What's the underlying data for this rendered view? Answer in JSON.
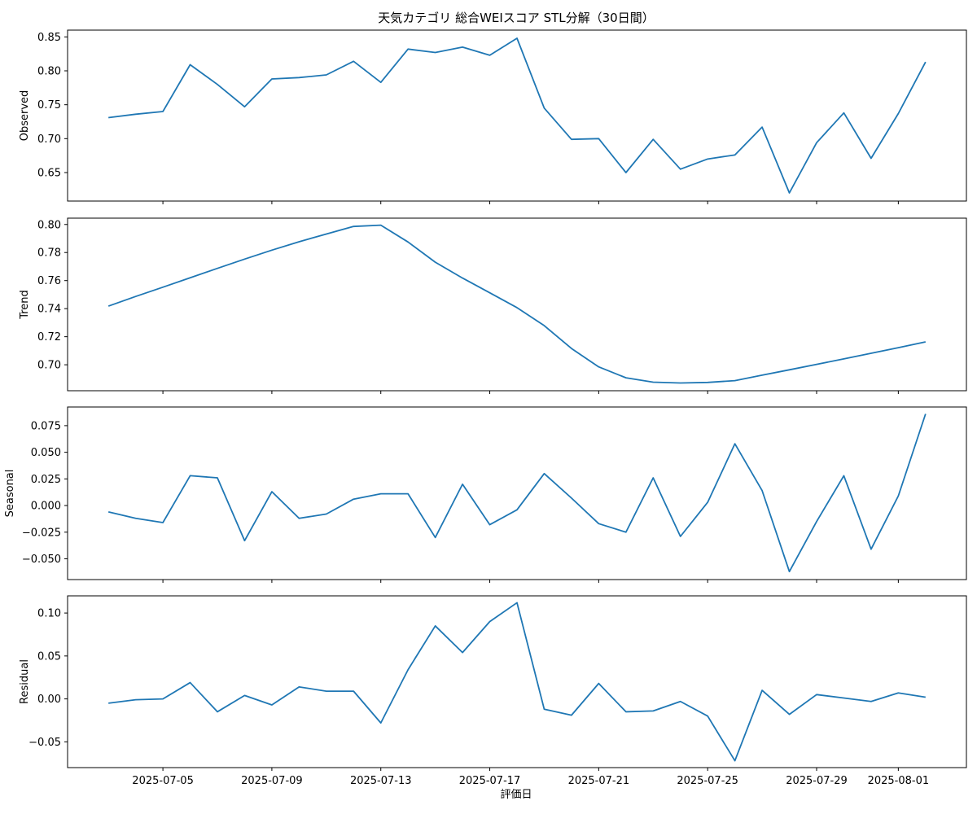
{
  "chart_data": {
    "type": "line",
    "title": "天気カテゴリ 総合WEIスコア STL分解（30日間）",
    "xlabel": "評価日",
    "x": [
      "2025-07-03",
      "2025-07-04",
      "2025-07-05",
      "2025-07-06",
      "2025-07-07",
      "2025-07-08",
      "2025-07-09",
      "2025-07-10",
      "2025-07-11",
      "2025-07-12",
      "2025-07-13",
      "2025-07-14",
      "2025-07-15",
      "2025-07-16",
      "2025-07-17",
      "2025-07-18",
      "2025-07-19",
      "2025-07-20",
      "2025-07-21",
      "2025-07-22",
      "2025-07-23",
      "2025-07-24",
      "2025-07-25",
      "2025-07-26",
      "2025-07-27",
      "2025-07-28",
      "2025-07-29",
      "2025-07-30",
      "2025-07-31",
      "2025-08-01",
      "2025-08-02"
    ],
    "x_ticks": [
      "2025-07-05",
      "2025-07-09",
      "2025-07-13",
      "2025-07-17",
      "2025-07-21",
      "2025-07-25",
      "2025-07-29",
      "2025-08-01"
    ],
    "line_color": "#1f77b4",
    "panels": [
      {
        "ylabel": "Observed",
        "ylim": [
          0.608,
          0.86
        ],
        "y_ticks": [
          "0.65",
          "0.70",
          "0.75",
          "0.80",
          "0.85"
        ],
        "values": [
          0.731,
          0.736,
          0.74,
          0.809,
          0.78,
          0.747,
          0.788,
          0.79,
          0.794,
          0.814,
          0.783,
          0.832,
          0.827,
          0.835,
          0.823,
          0.848,
          0.745,
          0.699,
          0.7,
          0.65,
          0.699,
          0.655,
          0.67,
          0.676,
          0.717,
          0.62,
          0.694,
          0.738,
          0.671,
          0.737,
          0.813
        ]
      },
      {
        "ylabel": "Trend",
        "ylim": [
          0.6815,
          0.8045
        ],
        "y_ticks": [
          "0.70",
          "0.72",
          "0.74",
          "0.76",
          "0.78",
          "0.80"
        ],
        "values": [
          0.7418,
          0.7487,
          0.7553,
          0.762,
          0.7687,
          0.7753,
          0.7817,
          0.7877,
          0.7932,
          0.7986,
          0.7995,
          0.7875,
          0.7731,
          0.7618,
          0.7513,
          0.7407,
          0.7279,
          0.7116,
          0.6985,
          0.6907,
          0.6876,
          0.687,
          0.6874,
          0.6887,
          0.6926,
          0.6964,
          0.7003,
          0.7042,
          0.7082,
          0.7122,
          0.7163
        ]
      },
      {
        "ylabel": "Seasonal",
        "ylim": [
          -0.0695,
          0.0925
        ],
        "y_ticks": [
          "−0.050",
          "−0.025",
          "0.000",
          "0.025",
          "0.050",
          "0.075"
        ],
        "values": [
          -0.006,
          -0.012,
          -0.016,
          0.028,
          0.026,
          -0.033,
          0.013,
          -0.012,
          -0.008,
          0.006,
          0.011,
          0.011,
          -0.03,
          0.02,
          -0.018,
          -0.004,
          0.03,
          0.007,
          -0.017,
          -0.025,
          0.026,
          -0.029,
          0.003,
          0.058,
          0.014,
          -0.062,
          -0.015,
          0.028,
          -0.041,
          0.009,
          0.086
        ]
      },
      {
        "ylabel": "Residual",
        "ylim": [
          -0.08,
          0.12
        ],
        "y_ticks": [
          "−0.05",
          "0.00",
          "0.05",
          "0.10"
        ],
        "values": [
          -0.005,
          -0.001,
          0.0,
          0.019,
          -0.015,
          0.004,
          -0.007,
          0.014,
          0.009,
          0.009,
          -0.028,
          0.034,
          0.085,
          0.054,
          0.09,
          0.112,
          -0.012,
          -0.019,
          0.018,
          -0.015,
          -0.014,
          -0.003,
          -0.02,
          -0.072,
          0.01,
          -0.018,
          0.005,
          0.001,
          -0.003,
          0.007,
          0.002
        ]
      }
    ]
  }
}
